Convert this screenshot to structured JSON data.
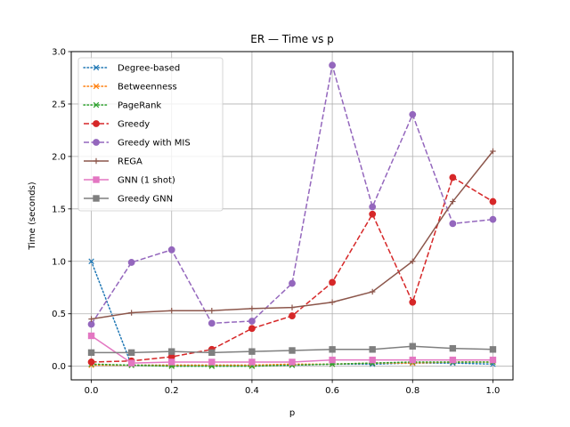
{
  "chart_data": {
    "type": "line",
    "title": "ER — Time vs p",
    "xlabel": "p",
    "ylabel": "Time (seconds)",
    "xlim": [
      -0.05,
      1.05
    ],
    "ylim": [
      -0.13,
      3.0
    ],
    "xticks": [
      0.0,
      0.2,
      0.4,
      0.6,
      0.8,
      1.0
    ],
    "xtick_labels": [
      "0.0",
      "0.2",
      "0.4",
      "0.6",
      "0.8",
      "1.0"
    ],
    "yticks": [
      0.0,
      0.5,
      1.0,
      1.5,
      2.0,
      2.5,
      3.0
    ],
    "ytick_labels": [
      "0.0",
      "0.5",
      "1.0",
      "1.5",
      "2.0",
      "2.5",
      "3.0"
    ],
    "grid": true,
    "legend_position": "top-left",
    "x": [
      0.0,
      0.1,
      0.2,
      0.3,
      0.4,
      0.5,
      0.6,
      0.7,
      0.8,
      0.9,
      1.0
    ],
    "series": [
      {
        "name": "Degree-based",
        "color": "#1f77b4",
        "dash": "dotted",
        "marker": "x",
        "values": [
          1.0,
          0.01,
          0.01,
          0.01,
          0.01,
          0.01,
          0.02,
          0.02,
          0.03,
          0.03,
          0.02
        ]
      },
      {
        "name": "Betweenness",
        "color": "#ff7f0e",
        "dash": "dotted",
        "marker": "x",
        "values": [
          0.01,
          0.01,
          0.01,
          0.01,
          0.01,
          0.02,
          0.02,
          0.03,
          0.03,
          0.04,
          0.04
        ]
      },
      {
        "name": "PageRank",
        "color": "#2ca02c",
        "dash": "dotted",
        "marker": "x",
        "values": [
          0.02,
          0.01,
          0.0,
          0.0,
          0.0,
          0.01,
          0.02,
          0.03,
          0.04,
          0.04,
          0.04
        ]
      },
      {
        "name": "Greedy",
        "color": "#d62728",
        "dash": "dashed",
        "marker": "circle",
        "values": [
          0.04,
          0.05,
          0.09,
          0.16,
          0.36,
          0.48,
          0.8,
          1.45,
          0.61,
          1.8,
          1.57
        ]
      },
      {
        "name": "Greedy with MIS",
        "color": "#9467bd",
        "dash": "dashed",
        "marker": "circle",
        "values": [
          0.4,
          0.99,
          1.11,
          0.41,
          0.43,
          0.79,
          2.87,
          1.52,
          2.4,
          1.36,
          1.4
        ]
      },
      {
        "name": "REGA",
        "color": "#8c564b",
        "dash": "solid",
        "marker": "plus",
        "values": [
          0.45,
          0.51,
          0.53,
          0.53,
          0.55,
          0.56,
          0.61,
          0.71,
          1.0,
          1.57,
          2.05
        ]
      },
      {
        "name": "GNN (1 shot)",
        "color": "#e377c2",
        "dash": "solid",
        "marker": "square",
        "values": [
          0.29,
          0.03,
          0.04,
          0.04,
          0.04,
          0.04,
          0.06,
          0.06,
          0.06,
          0.06,
          0.06
        ]
      },
      {
        "name": "Greedy GNN",
        "color": "#7f7f7f",
        "dash": "solid",
        "marker": "square",
        "values": [
          0.13,
          0.13,
          0.14,
          0.13,
          0.14,
          0.15,
          0.16,
          0.16,
          0.19,
          0.17,
          0.16
        ]
      }
    ]
  }
}
